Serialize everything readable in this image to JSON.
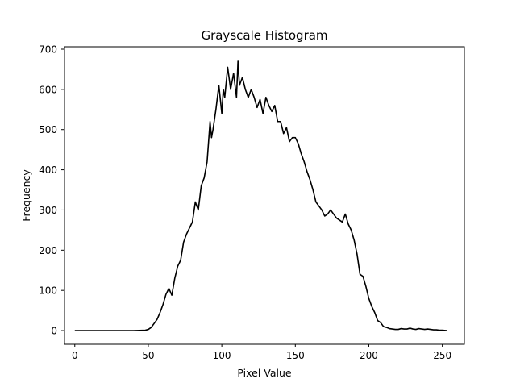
{
  "chart_data": {
    "type": "line",
    "title": "Grayscale Histogram",
    "xlabel": "Pixel Value",
    "ylabel": "Frequency",
    "xlim": [
      -7,
      265
    ],
    "ylim": [
      -34,
      706
    ],
    "xticks": [
      0,
      50,
      100,
      150,
      200,
      250
    ],
    "yticks": [
      0,
      100,
      200,
      300,
      400,
      500,
      600,
      700
    ],
    "grid": false,
    "line_color": "#000000",
    "series": [
      {
        "x": [
          0,
          10,
          20,
          30,
          40,
          48,
          50,
          52,
          54,
          56,
          58,
          60,
          62,
          64,
          66,
          68,
          70,
          72,
          74,
          76,
          78,
          80,
          82,
          84,
          86,
          88,
          90,
          92,
          93,
          94,
          96,
          98,
          100,
          101,
          102,
          104,
          106,
          108,
          110,
          111,
          112,
          114,
          116,
          118,
          120,
          122,
          124,
          126,
          128,
          130,
          132,
          134,
          136,
          138,
          140,
          142,
          144,
          146,
          148,
          150,
          152,
          154,
          156,
          158,
          160,
          162,
          164,
          166,
          168,
          170,
          172,
          174,
          176,
          178,
          180,
          182,
          184,
          186,
          188,
          190,
          192,
          194,
          196,
          198,
          200,
          202,
          204,
          206,
          208,
          210,
          212,
          214,
          216,
          218,
          220,
          222,
          224,
          226,
          228,
          230,
          232,
          234,
          236,
          238,
          240,
          242,
          244,
          246,
          248,
          250,
          253
        ],
        "y": [
          0,
          0,
          0,
          0,
          0,
          1,
          3,
          8,
          18,
          28,
          45,
          65,
          90,
          105,
          88,
          130,
          160,
          175,
          220,
          240,
          255,
          270,
          320,
          300,
          360,
          380,
          420,
          520,
          480,
          500,
          550,
          610,
          540,
          600,
          580,
          655,
          600,
          640,
          580,
          670,
          610,
          630,
          600,
          580,
          600,
          580,
          555,
          575,
          540,
          580,
          560,
          545,
          560,
          520,
          520,
          490,
          505,
          470,
          480,
          480,
          465,
          440,
          420,
          395,
          375,
          350,
          320,
          310,
          300,
          285,
          290,
          300,
          290,
          280,
          275,
          270,
          290,
          265,
          250,
          225,
          190,
          140,
          135,
          110,
          80,
          60,
          45,
          25,
          20,
          10,
          8,
          5,
          4,
          3,
          3,
          5,
          4,
          4,
          6,
          4,
          3,
          5,
          4,
          3,
          4,
          3,
          2,
          2,
          1,
          1,
          0
        ]
      }
    ]
  }
}
